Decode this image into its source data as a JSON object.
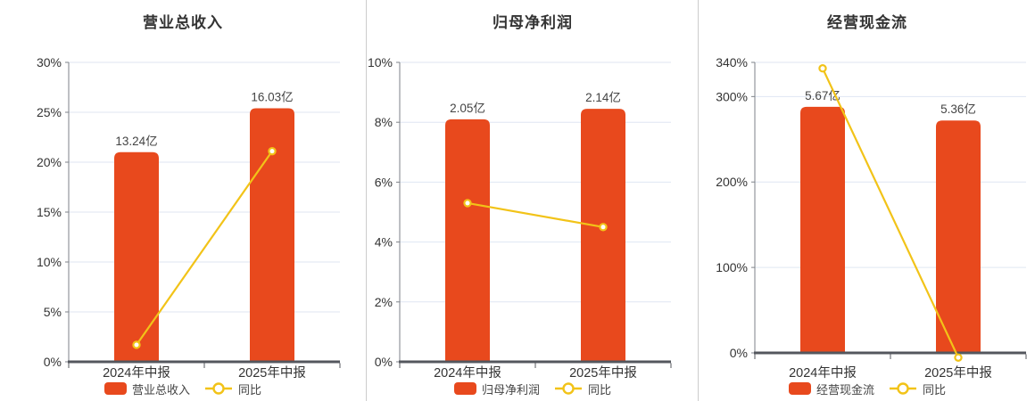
{
  "colors": {
    "bar": "#e8491d",
    "line": "#f2c318",
    "grid": "#dfe6f2",
    "axis": "#54575e",
    "y_axis": "#7e8288",
    "tick_text": "#333333",
    "data_label_text": "#444444",
    "legend_text": "#444444",
    "divider": "#cccccc"
  },
  "chart_data": [
    {
      "type": "bar+line",
      "title": "营业总收入",
      "categories": [
        "2024年中报",
        "2025年中报"
      ],
      "y_axis": {
        "max": 30,
        "tick_values": [
          0,
          5,
          10,
          15,
          20,
          25,
          30
        ],
        "tick_labels": [
          "0%",
          "5%",
          "10%",
          "15%",
          "20%",
          "25%",
          "30%"
        ]
      },
      "grid": true,
      "legend_position": "bottom",
      "bar_series": {
        "name": "营业总收入",
        "unit": "亿",
        "values": [
          13.24,
          16.03
        ],
        "labels": [
          "13.24亿",
          "16.03亿"
        ],
        "display_axis_pct": [
          21.0,
          25.4
        ]
      },
      "line_series": {
        "name": "同比",
        "values_pct": [
          1.7,
          21.1
        ]
      }
    },
    {
      "type": "bar+line",
      "title": "归母净利润",
      "categories": [
        "2024年中报",
        "2025年中报"
      ],
      "y_axis": {
        "max": 10,
        "tick_values": [
          0,
          2,
          4,
          6,
          8,
          10
        ],
        "tick_labels": [
          "0%",
          "2%",
          "4%",
          "6%",
          "8%",
          "10%"
        ]
      },
      "grid": true,
      "legend_position": "bottom",
      "bar_series": {
        "name": "归母净利润",
        "unit": "亿",
        "values": [
          2.05,
          2.14
        ],
        "labels": [
          "2.05亿",
          "2.14亿"
        ],
        "display_axis_pct": [
          8.1,
          8.45
        ]
      },
      "line_series": {
        "name": "同比",
        "values_pct": [
          5.3,
          4.5
        ]
      }
    },
    {
      "type": "bar+line",
      "title": "经营现金流",
      "categories": [
        "2024年中报",
        "2025年中报"
      ],
      "y_axis": {
        "max": 340,
        "tick_values": [
          0,
          100,
          200,
          300,
          340
        ],
        "tick_labels": [
          "0%",
          "100%",
          "200%",
          "300%",
          "340%"
        ]
      },
      "grid": true,
      "legend_position": "bottom",
      "bar_series": {
        "name": "经营现金流",
        "unit": "亿",
        "values": [
          5.67,
          5.36
        ],
        "labels": [
          "5.67亿",
          "5.36亿"
        ],
        "display_axis_pct": [
          288,
          272
        ]
      },
      "line_series": {
        "name": "同比",
        "values_pct": [
          333,
          -5.5
        ]
      }
    }
  ]
}
